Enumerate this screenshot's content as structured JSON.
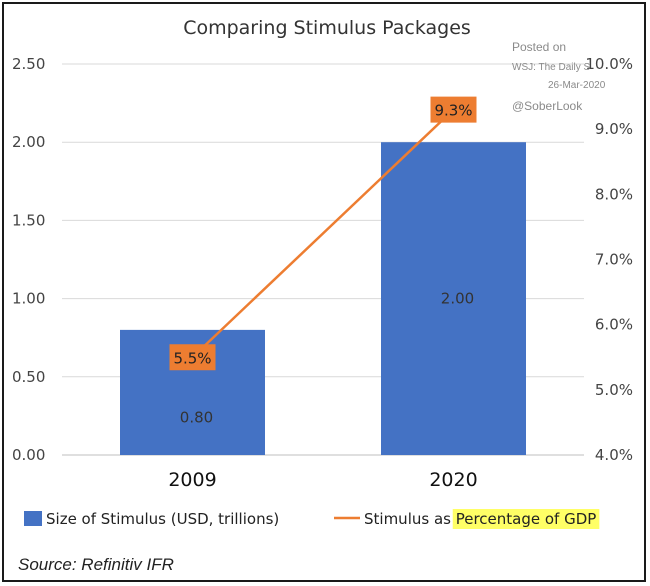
{
  "chart_data": {
    "type": "bar",
    "title": "Comparing Stimulus Packages",
    "categories": [
      "2009",
      "2020"
    ],
    "series": [
      {
        "name": "Size of Stimulus (USD, trillions)",
        "type": "bar",
        "axis": "left",
        "values": [
          0.8,
          2.0
        ],
        "labels": [
          "0.80",
          "2.00"
        ],
        "color": "#4472C4"
      },
      {
        "name": "Stimulus as Percentage of GDP",
        "type": "line",
        "axis": "right",
        "values": [
          5.5,
          9.3
        ],
        "labels": [
          "5.5%",
          "9.3%"
        ],
        "color": "#ED7D31"
      }
    ],
    "ylim_left": [
      0,
      2.5
    ],
    "yticks_left": [
      "0.00",
      "0.50",
      "1.00",
      "1.50",
      "2.00",
      "2.50"
    ],
    "ylim_right": [
      4,
      10
    ],
    "yticks_right": [
      "4.0%",
      "5.0%",
      "6.0%",
      "7.0%",
      "8.0%",
      "9.0%",
      "10.0%"
    ],
    "grid": true,
    "legend_position": "bottom",
    "legend_highlight_text": "Percentage of GDP",
    "legend_highlight_color": "#FFFF66",
    "annotations": {
      "posted_on": "Posted on",
      "source_line": "WSJ: The Daily S",
      "date": "26-Mar-2020",
      "handle": "@SoberLook"
    },
    "source": "Source: Refinitiv IFR"
  }
}
